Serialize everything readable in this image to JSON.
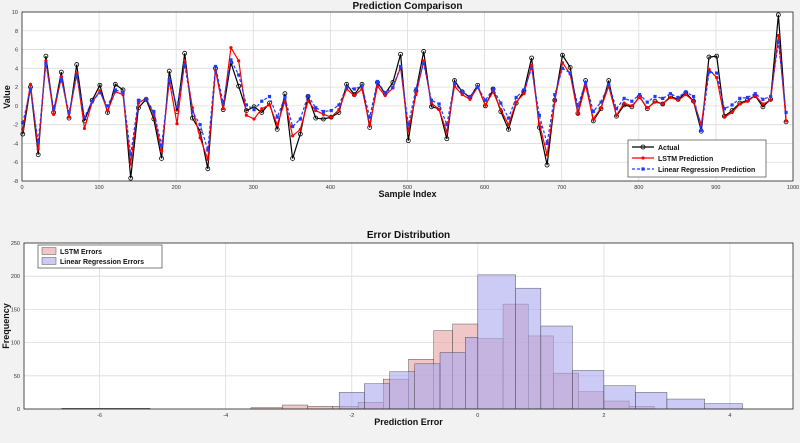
{
  "chart_data": [
    {
      "type": "line",
      "title": "Prediction Comparison",
      "xlabel": "Sample Index",
      "ylabel": "Value",
      "xlim": [
        0,
        1000
      ],
      "ylim": [
        -8,
        10
      ],
      "xticks": [
        0,
        100,
        200,
        300,
        400,
        500,
        600,
        700,
        800,
        900,
        1000
      ],
      "yticks": [
        -8,
        -6,
        -4,
        -2,
        0,
        2,
        4,
        6,
        8,
        10
      ],
      "grid": true,
      "legend_position": "bottom-right",
      "x": [
        1,
        11,
        21,
        31,
        41,
        51,
        61,
        71,
        81,
        91,
        101,
        111,
        121,
        131,
        141,
        151,
        161,
        171,
        181,
        191,
        201,
        211,
        221,
        231,
        241,
        251,
        261,
        271,
        281,
        291,
        301,
        311,
        321,
        331,
        341,
        351,
        361,
        371,
        381,
        391,
        401,
        411,
        421,
        431,
        441,
        451,
        461,
        471,
        481,
        491,
        501,
        511,
        521,
        531,
        541,
        551,
        561,
        571,
        581,
        591,
        601,
        611,
        621,
        631,
        641,
        651,
        661,
        671,
        681,
        691,
        701,
        711,
        721,
        731,
        741,
        751,
        761,
        771,
        781,
        791,
        801,
        811,
        821,
        831,
        841,
        851,
        861,
        871,
        881,
        891,
        901,
        911,
        921,
        931,
        941,
        951,
        961,
        971,
        981,
        991
      ],
      "series": [
        {
          "name": "Actual",
          "color": "#000000",
          "marker": "circle",
          "values": [
            -3.0,
            2.0,
            -5.2,
            5.3,
            -0.7,
            3.6,
            -1.3,
            4.4,
            -1.6,
            0.6,
            2.2,
            -0.7,
            2.3,
            1.7,
            -7.7,
            -0.2,
            0.7,
            -1.4,
            -5.6,
            3.7,
            -0.6,
            5.6,
            -1.3,
            -2.7,
            -6.7,
            4.0,
            -0.4,
            4.6,
            2.1,
            -0.5,
            -0.1,
            -0.7,
            0.3,
            -2.5,
            1.3,
            -5.6,
            -3.0,
            1.0,
            -1.3,
            -1.4,
            -1.2,
            -0.7,
            2.3,
            1.2,
            2.3,
            -2.3,
            2.5,
            1.3,
            2.5,
            5.5,
            -3.7,
            1.6,
            5.8,
            -0.1,
            -0.3,
            -3.5,
            2.7,
            1.5,
            0.9,
            2.2,
            0.0,
            1.8,
            -0.6,
            -2.5,
            0.3,
            1.6,
            5.1,
            -2.3,
            -6.3,
            0.6,
            5.4,
            4.1,
            -0.8,
            2.7,
            -1.6,
            -0.3,
            2.7,
            -1.1,
            0.1,
            -0.1,
            1.0,
            -0.3,
            0.5,
            0.2,
            1.0,
            0.7,
            1.4,
            0.5,
            -2.7,
            5.2,
            5.3,
            -1.1,
            -0.5,
            0.3,
            0.6,
            1.1,
            -0.1,
            0.7,
            9.7,
            -1.7
          ]
        },
        {
          "name": "LSTM Prediction",
          "color": "#ff0000",
          "marker": "point",
          "values": [
            -2.5,
            2.3,
            -4.6,
            4.8,
            -0.9,
            3.1,
            -1.2,
            3.5,
            -2.4,
            0.4,
            1.6,
            -0.5,
            1.5,
            1.2,
            -6.2,
            0.3,
            0.8,
            -0.9,
            -4.8,
            2.7,
            -1.9,
            4.8,
            -0.2,
            -3.4,
            -5.7,
            3.8,
            -0.3,
            6.2,
            4.8,
            -1.0,
            -1.4,
            -0.3,
            0.1,
            -2.0,
            0.5,
            -3.2,
            -2.5,
            0.5,
            -0.5,
            -0.9,
            -1.2,
            -0.4,
            1.8,
            1.1,
            1.8,
            -2.0,
            2.1,
            1.1,
            1.9,
            4.1,
            -2.7,
            1.2,
            4.8,
            0.3,
            -0.4,
            -2.8,
            2.1,
            1.2,
            0.7,
            2.0,
            0.1,
            1.5,
            -0.4,
            -2.0,
            0.4,
            1.3,
            4.3,
            -1.9,
            -5.2,
            0.6,
            4.6,
            3.4,
            -0.9,
            2.2,
            -1.4,
            -0.2,
            2.1,
            -1.0,
            0.3,
            0.0,
            0.9,
            -0.2,
            0.4,
            0.2,
            0.9,
            0.6,
            1.2,
            0.5,
            -2.0,
            3.9,
            3.0,
            -1.2,
            -0.7,
            0.2,
            0.5,
            1.1,
            0.2,
            0.6,
            7.5,
            -1.6
          ]
        },
        {
          "name": "Linear Regression Prediction",
          "color": "#1f3bff",
          "marker": "square",
          "values": [
            -1.8,
            1.8,
            -3.9,
            4.5,
            -0.3,
            2.8,
            -0.7,
            3.2,
            -1.2,
            0.5,
            1.4,
            0.0,
            1.7,
            1.4,
            -5.2,
            0.6,
            0.7,
            -0.6,
            -4.2,
            2.8,
            -0.1,
            4.4,
            -0.6,
            -2.0,
            -4.7,
            4.2,
            0.3,
            4.9,
            3.3,
            0.1,
            -0.4,
            0.5,
            1.0,
            -1.2,
            0.9,
            -2.2,
            -1.4,
            1.1,
            -0.2,
            -0.6,
            -0.5,
            0.1,
            2.0,
            1.8,
            2.1,
            -1.2,
            2.6,
            1.4,
            2.0,
            4.2,
            -2.0,
            1.8,
            4.5,
            0.6,
            0.2,
            -2.0,
            2.4,
            1.5,
            1.0,
            2.0,
            0.6,
            1.8,
            0.3,
            -1.3,
            0.9,
            1.7,
            4.0,
            -1.0,
            -4.0,
            1.2,
            4.0,
            3.5,
            0.0,
            2.5,
            -0.6,
            0.4,
            2.3,
            -0.3,
            0.8,
            0.5,
            1.2,
            0.4,
            1.0,
            0.8,
            1.3,
            0.9,
            1.5,
            1.0,
            -2.6,
            3.6,
            3.5,
            -0.3,
            0.1,
            0.8,
            0.9,
            1.3,
            0.7,
            1.0,
            6.8,
            -0.7
          ]
        }
      ]
    },
    {
      "type": "histogram",
      "title": "Error Distribution",
      "xlabel": "Prediction Error",
      "ylabel": "Frequency",
      "xlim": [
        -7.2,
        5.0
      ],
      "ylim": [
        0,
        250
      ],
      "xticks": [
        -6,
        -4,
        -2,
        0,
        2,
        4
      ],
      "yticks": [
        0,
        50,
        100,
        150,
        200,
        250
      ],
      "grid": true,
      "legend_position": "top-left",
      "series": [
        {
          "name": "LSTM Errors",
          "color": "#e8a0a0",
          "bin_edges": [
            -6.6,
            -5.2,
            -3.6,
            -3.1,
            -2.7,
            -2.3,
            -1.9,
            -1.5,
            -1.1,
            -0.7,
            -0.4,
            0.0,
            0.4,
            0.8,
            1.2,
            1.6,
            2.0,
            2.4,
            2.8
          ],
          "counts": [
            1,
            0,
            2,
            6,
            4,
            4,
            10,
            45,
            75,
            118,
            128,
            106,
            158,
            110,
            54,
            26,
            12,
            4
          ]
        },
        {
          "name": "Linear Regression Errors",
          "color": "#a9a9f0",
          "bin_edges": [
            -2.2,
            -1.8,
            -1.4,
            -1.0,
            -0.6,
            -0.2,
            0.0,
            0.6,
            1.0,
            1.5,
            2.0,
            2.5,
            3.0,
            3.6,
            4.2
          ],
          "counts": [
            25,
            38,
            56,
            68,
            85,
            108,
            202,
            182,
            125,
            58,
            35,
            25,
            15,
            8
          ]
        }
      ]
    }
  ]
}
